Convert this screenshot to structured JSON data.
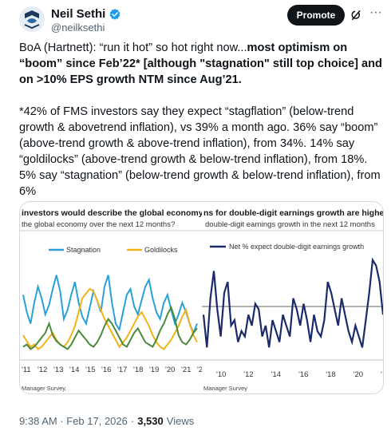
{
  "author": {
    "name": "Neil Sethi",
    "handle": "@neilksethi"
  },
  "header": {
    "promote_label": "Promote",
    "more_label": "···"
  },
  "tweet": {
    "p1_plain": "BoA (Hartnett): “run it hot” so hot right now...",
    "p1_bold": "most optimism on “boom” since Feb’22* [although \"stagnation\" still top choice] and on >10% EPS growth NTM since Aug’21.",
    "p2": "*42% of FMS investors say they expect  “stagflation” (below-trend growth & abovetrend inflation), vs 39% a month ago. 36% say “boom” (above-trend growth &  above-trend inflation), from 34%. 14% say “goldilocks” (above-trend growth &  below-trend inflation), from 18%. 5% say “stagnation” (below-trend growth &  below-trend inflation), from 6%"
  },
  "footer": {
    "time": "9:38 AM · Feb 17, 2026",
    "sep": "·",
    "views_count": "3,530",
    "views_label": "Views"
  },
  "chart_data": [
    {
      "type": "line",
      "title": "investors would describe the global economy over th",
      "subtitle": "the global economy over the next 12 months?",
      "source": "Manager Survey.",
      "x_tick_labels": [
        "'11",
        "'12",
        "'13",
        "'14",
        "'15",
        "'16",
        "'17",
        "'18",
        "'19",
        "'20",
        "'21",
        "'2"
      ],
      "colors": {
        "Stagnation": "#2aa0d8",
        "Goldilocks": "#f2b318"
      },
      "series": [
        {
          "name": "Stagnation",
          "values": [
            55,
            40,
            30,
            48,
            62,
            52,
            38,
            46,
            60,
            72,
            58,
            34,
            42,
            55,
            66,
            48,
            36,
            30,
            44,
            58,
            50,
            40,
            62,
            72,
            48,
            30,
            25,
            40,
            55,
            60,
            45,
            38,
            50,
            62,
            68,
            52,
            40,
            34,
            48,
            55,
            42,
            30,
            38,
            48,
            40,
            30,
            22,
            30
          ]
        },
        {
          "name": "Goldilocks",
          "values": [
            20,
            15,
            10,
            12,
            8,
            10,
            14,
            18,
            22,
            16,
            12,
            10,
            14,
            20,
            28,
            40,
            52,
            56,
            60,
            58,
            50,
            42,
            34,
            28,
            22,
            16,
            10,
            14,
            18,
            24,
            30,
            36,
            40,
            34,
            28,
            20,
            14,
            10,
            8,
            12,
            16,
            22,
            28,
            36,
            42,
            30,
            20,
            14
          ]
        },
        {
          "values": [
            10,
            12,
            8,
            10,
            14,
            18,
            22,
            30,
            20,
            15,
            12,
            10,
            8,
            12,
            18,
            24,
            20,
            16,
            12,
            10,
            14,
            20,
            28,
            34,
            30,
            24,
            18,
            12,
            10,
            16,
            22,
            26,
            20,
            14,
            12,
            10,
            16,
            24,
            30,
            38,
            44,
            34,
            20,
            14,
            12,
            16,
            22,
            26
          ]
        }
      ]
    },
    {
      "type": "line",
      "title": "ns for double-digit earnings growth are highest since A",
      "subtitle": "double-digit earnings growth in the next 12 months",
      "source": "Manager Survey",
      "x_tick_labels": [
        "'10",
        "'12",
        "'14",
        "'16",
        "'18",
        "'20",
        "'"
      ],
      "series": [
        {
          "name": "Net % expect double-digit earnings growth",
          "values": [
            40,
            10,
            55,
            80,
            45,
            20,
            60,
            70,
            30,
            35,
            15,
            25,
            20,
            40,
            30,
            50,
            45,
            20,
            30,
            10,
            35,
            25,
            15,
            40,
            30,
            20,
            55,
            45,
            30,
            50,
            35,
            15,
            40,
            25,
            20,
            35,
            70,
            60,
            45,
            30,
            55,
            40,
            25,
            15,
            30,
            20,
            10,
            35,
            60,
            90,
            85,
            70,
            40
          ]
        }
      ]
    }
  ]
}
